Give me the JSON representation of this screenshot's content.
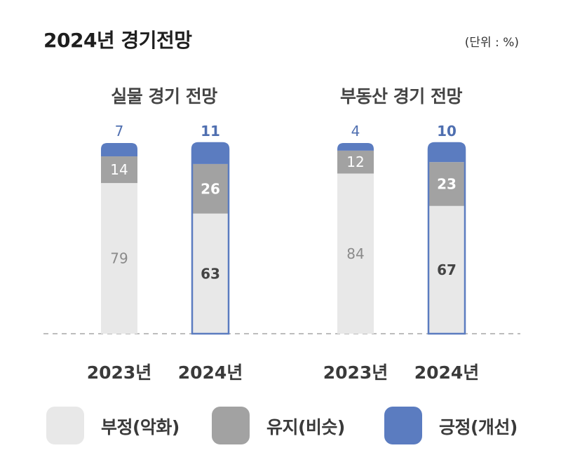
{
  "title": "2024년 경기전망",
  "unit": "(단위 : %)",
  "legend": [
    {
      "label": "부정(악화)",
      "color": "#e8e8e8"
    },
    {
      "label": "유지(비슷)",
      "color": "#a2a2a2"
    },
    {
      "label": "긍정(개선)",
      "color": "#5b7cc0"
    }
  ],
  "chart_data": [
    {
      "type": "bar",
      "stacked": true,
      "title": "실물 경기 전망",
      "categories": [
        "2023년",
        "2024년"
      ],
      "highlight_category": "2024년",
      "series": [
        {
          "name": "부정(악화)",
          "values": [
            79,
            63
          ]
        },
        {
          "name": "유지(비슷)",
          "values": [
            14,
            26
          ]
        },
        {
          "name": "긍정(개선)",
          "values": [
            7,
            11
          ]
        }
      ],
      "ylim": [
        0,
        100
      ]
    },
    {
      "type": "bar",
      "stacked": true,
      "title": "부동산 경기 전망",
      "categories": [
        "2023년",
        "2024년"
      ],
      "highlight_category": "2024년",
      "series": [
        {
          "name": "부정(악화)",
          "values": [
            84,
            67
          ]
        },
        {
          "name": "유지(비슷)",
          "values": [
            12,
            23
          ]
        },
        {
          "name": "긍정(개선)",
          "values": [
            4,
            10
          ]
        }
      ],
      "ylim": [
        0,
        100
      ]
    }
  ]
}
